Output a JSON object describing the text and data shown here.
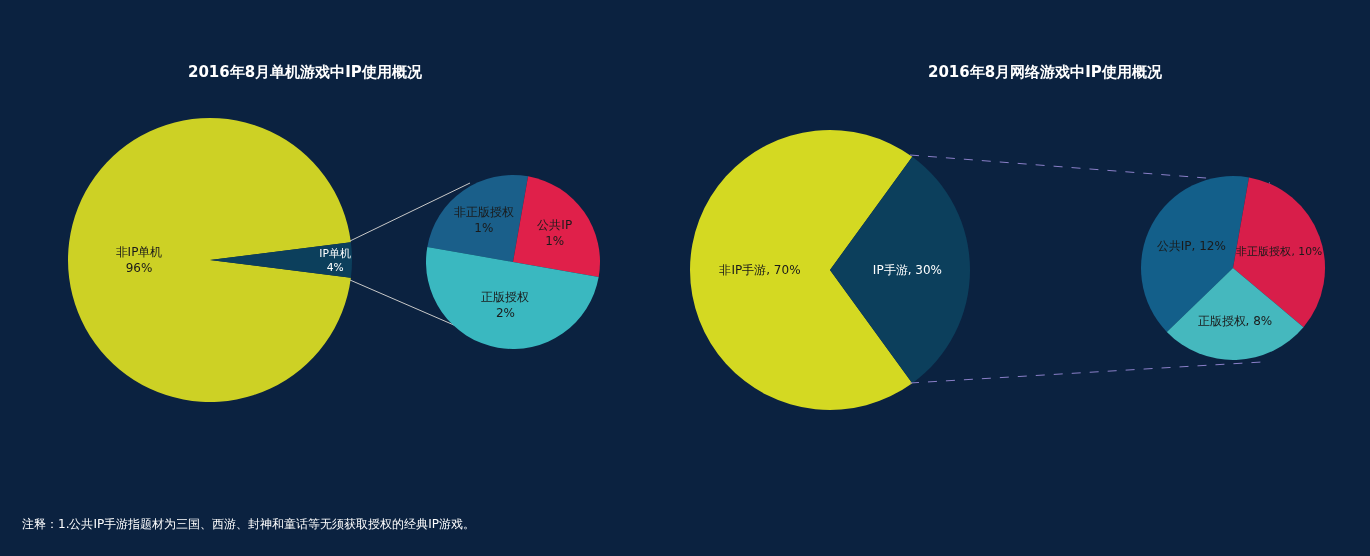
{
  "chart_data": [
    {
      "type": "pie",
      "title": "2016年8月单机游戏中IP使用概况",
      "categories": [
        "非IP单机",
        "IP单机"
      ],
      "values": [
        96,
        4
      ],
      "colors": [
        "#cdd125",
        "#0c3f5c"
      ],
      "value_labels": [
        "96%",
        "4%"
      ],
      "annotations": [
        "注释：1.公共IP手游指题材为三国、西游、封神和童话等无须获取授权的经典IP游戏。"
      ]
    },
    {
      "type": "pie",
      "categories": [
        "非正版授权",
        "公共IP",
        "正版授权"
      ],
      "values": [
        1,
        1,
        2
      ],
      "colors": [
        "#1a5f8a",
        "#e0204a",
        "#3ab8c0"
      ],
      "value_labels": [
        "1%",
        "1%",
        "2%"
      ]
    },
    {
      "type": "pie",
      "title": "2016年8月网络游戏中IP使用概况",
      "categories": [
        "非IP手游",
        "IP手游"
      ],
      "values": [
        70,
        30
      ],
      "colors": [
        "#d4d922",
        "#0c3f5c"
      ],
      "value_labels": [
        "70%",
        "30%"
      ]
    },
    {
      "type": "pie",
      "categories": [
        "公共IP",
        "非正版授权",
        "正版授权"
      ],
      "values": [
        12,
        10,
        8
      ],
      "colors": [
        "#135f8a",
        "#d81e4a",
        "#45b8be"
      ],
      "value_labels": [
        "12%",
        "10%",
        "8%"
      ]
    }
  ]
}
